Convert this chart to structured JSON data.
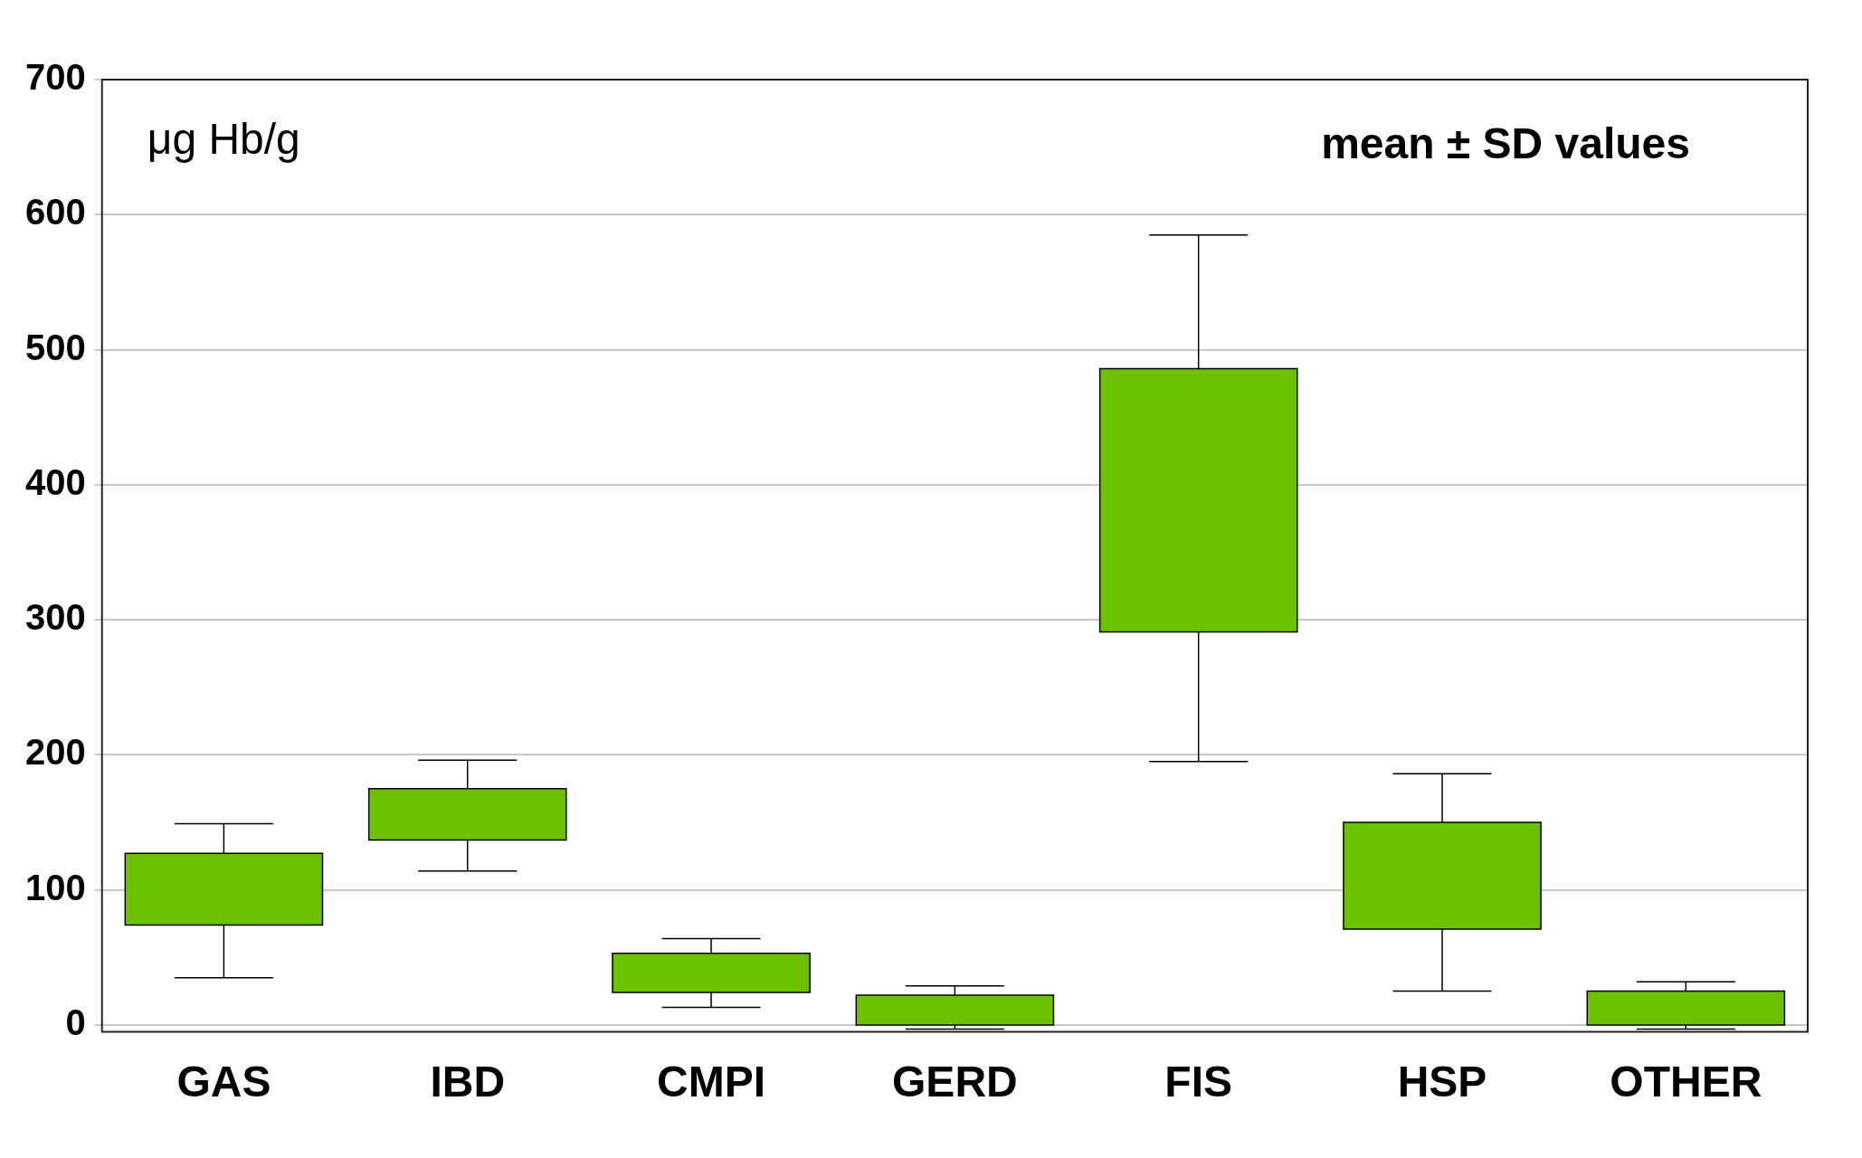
{
  "chart_data": {
    "type": "box",
    "ylabel": "μg Hb/g",
    "annotations": [
      "mean ± SD values"
    ],
    "categories": [
      "GAS",
      "IBD",
      "CMPI",
      "GERD",
      "FIS",
      "HSP",
      "OTHER"
    ],
    "color": "#6cc200",
    "boxes": [
      {
        "low": 35,
        "q1": 74,
        "q3": 127,
        "high": 149
      },
      {
        "low": 114,
        "q1": 137,
        "q3": 175,
        "high": 196
      },
      {
        "low": 13,
        "q1": 24,
        "q3": 53,
        "high": 64
      },
      {
        "low": -3,
        "q1": 0,
        "q3": 22,
        "high": 29
      },
      {
        "low": 195,
        "q1": 291,
        "q3": 486,
        "high": 585
      },
      {
        "low": 25,
        "q1": 71,
        "q3": 150,
        "high": 186
      },
      {
        "low": -3,
        "q1": 0,
        "q3": 25,
        "high": 32
      }
    ],
    "ylim": [
      -5,
      700
    ],
    "yticks": [
      0,
      100,
      200,
      300,
      400,
      500,
      600,
      700
    ],
    "grid": "y",
    "legend": false
  }
}
